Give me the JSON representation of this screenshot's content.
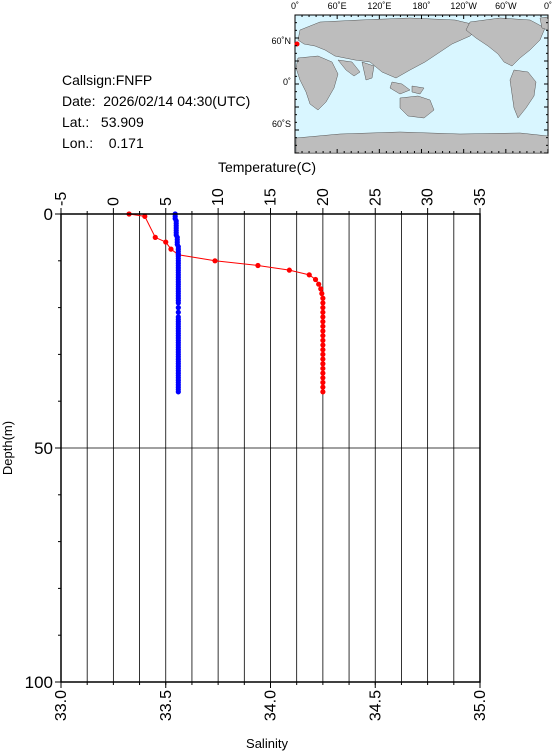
{
  "info": {
    "callsign": "Callsign:FNFP",
    "date": "Date:  2026/02/14 04:30(UTC)",
    "lat": "Lat.:   53.909",
    "lon": "Lon.:    0.171"
  },
  "map": {
    "top_labels": [
      "0˚",
      "60˚E",
      "120˚E",
      "180˚",
      "120˚W",
      "60˚W",
      "0˚"
    ],
    "left_labels": [
      "60˚N",
      "0˚",
      "60˚S"
    ],
    "ocean_color": "#d9f6ff",
    "land_color": "#bdbdbd",
    "marker_color": "#ff0000"
  },
  "chart_data": {
    "type": "line",
    "title": "",
    "temperature_axis": {
      "label": "Temperature(C)",
      "range": [
        -5,
        35
      ],
      "ticks": [
        "-5",
        "0",
        "5",
        "10",
        "15",
        "20",
        "25",
        "30",
        "35"
      ]
    },
    "salinity_axis": {
      "label": "Salinity",
      "range": [
        33.0,
        35.0
      ],
      "ticks": [
        "33.0",
        "33.5",
        "34.0",
        "34.5",
        "35.0"
      ]
    },
    "depth_axis": {
      "label": "Depth(m)",
      "range": [
        0,
        100
      ],
      "ticks": [
        "0",
        "50",
        "100"
      ],
      "inverted": true
    },
    "grid": true,
    "series": [
      {
        "name": "Temperature",
        "color": "#ff0000",
        "axis": "temperature",
        "depth": [
          0,
          0.5,
          5,
          6,
          7.5,
          8.7,
          10,
          11,
          12,
          13,
          14,
          15,
          16,
          17,
          18,
          19,
          20,
          21,
          22,
          23,
          24,
          25,
          26,
          27,
          28,
          29,
          30,
          31,
          32,
          33,
          34,
          35,
          36,
          37,
          38
        ],
        "values": [
          1.5,
          3.0,
          4.0,
          5.0,
          5.5,
          6.2,
          9.7,
          13.8,
          16.8,
          18.7,
          19.3,
          19.6,
          19.8,
          19.9,
          20.0,
          20.0,
          20.0,
          20.0,
          20.0,
          20.0,
          20.0,
          20.0,
          20.0,
          20.0,
          20.0,
          20.0,
          20.0,
          20.0,
          20.0,
          20.0,
          20.0,
          20.0,
          20.0,
          20.0,
          20.0
        ]
      },
      {
        "name": "Salinity",
        "color": "#0000ff",
        "axis": "salinity",
        "depth": [
          0,
          0.5,
          1,
          1.5,
          2,
          2.5,
          3,
          3.5,
          4,
          4.5,
          5,
          5.5,
          6,
          6.5,
          7,
          7.5,
          8,
          8.5,
          9,
          9.5,
          10,
          10.5,
          11,
          11.5,
          12,
          12.5,
          13,
          13.5,
          14,
          14.5,
          15,
          15.5,
          16,
          16.5,
          17,
          17.5,
          18,
          18.5,
          19,
          20,
          21,
          22,
          22.5,
          23,
          23.5,
          24,
          24.5,
          25,
          25.5,
          26,
          26.5,
          27,
          27.5,
          28,
          28.5,
          29,
          29.5,
          30,
          30.5,
          31,
          31.5,
          32,
          32.5,
          33,
          33.5,
          34,
          34.5,
          35,
          35.5,
          36,
          36.5,
          37,
          37.5,
          38
        ],
        "values": [
          33.545,
          33.545,
          33.545,
          33.55,
          33.55,
          33.55,
          33.55,
          33.55,
          33.55,
          33.55,
          33.555,
          33.555,
          33.555,
          33.555,
          33.56,
          33.56,
          33.56,
          33.56,
          33.56,
          33.56,
          33.56,
          33.56,
          33.56,
          33.56,
          33.56,
          33.56,
          33.56,
          33.56,
          33.56,
          33.56,
          33.56,
          33.56,
          33.56,
          33.56,
          33.56,
          33.56,
          33.56,
          33.56,
          33.56,
          33.56,
          33.56,
          33.56,
          33.56,
          33.56,
          33.56,
          33.56,
          33.56,
          33.56,
          33.56,
          33.56,
          33.56,
          33.56,
          33.56,
          33.56,
          33.56,
          33.56,
          33.56,
          33.56,
          33.56,
          33.56,
          33.56,
          33.56,
          33.56,
          33.56,
          33.56,
          33.56,
          33.56,
          33.56,
          33.56,
          33.56,
          33.56,
          33.56,
          33.56,
          33.56
        ]
      }
    ]
  }
}
